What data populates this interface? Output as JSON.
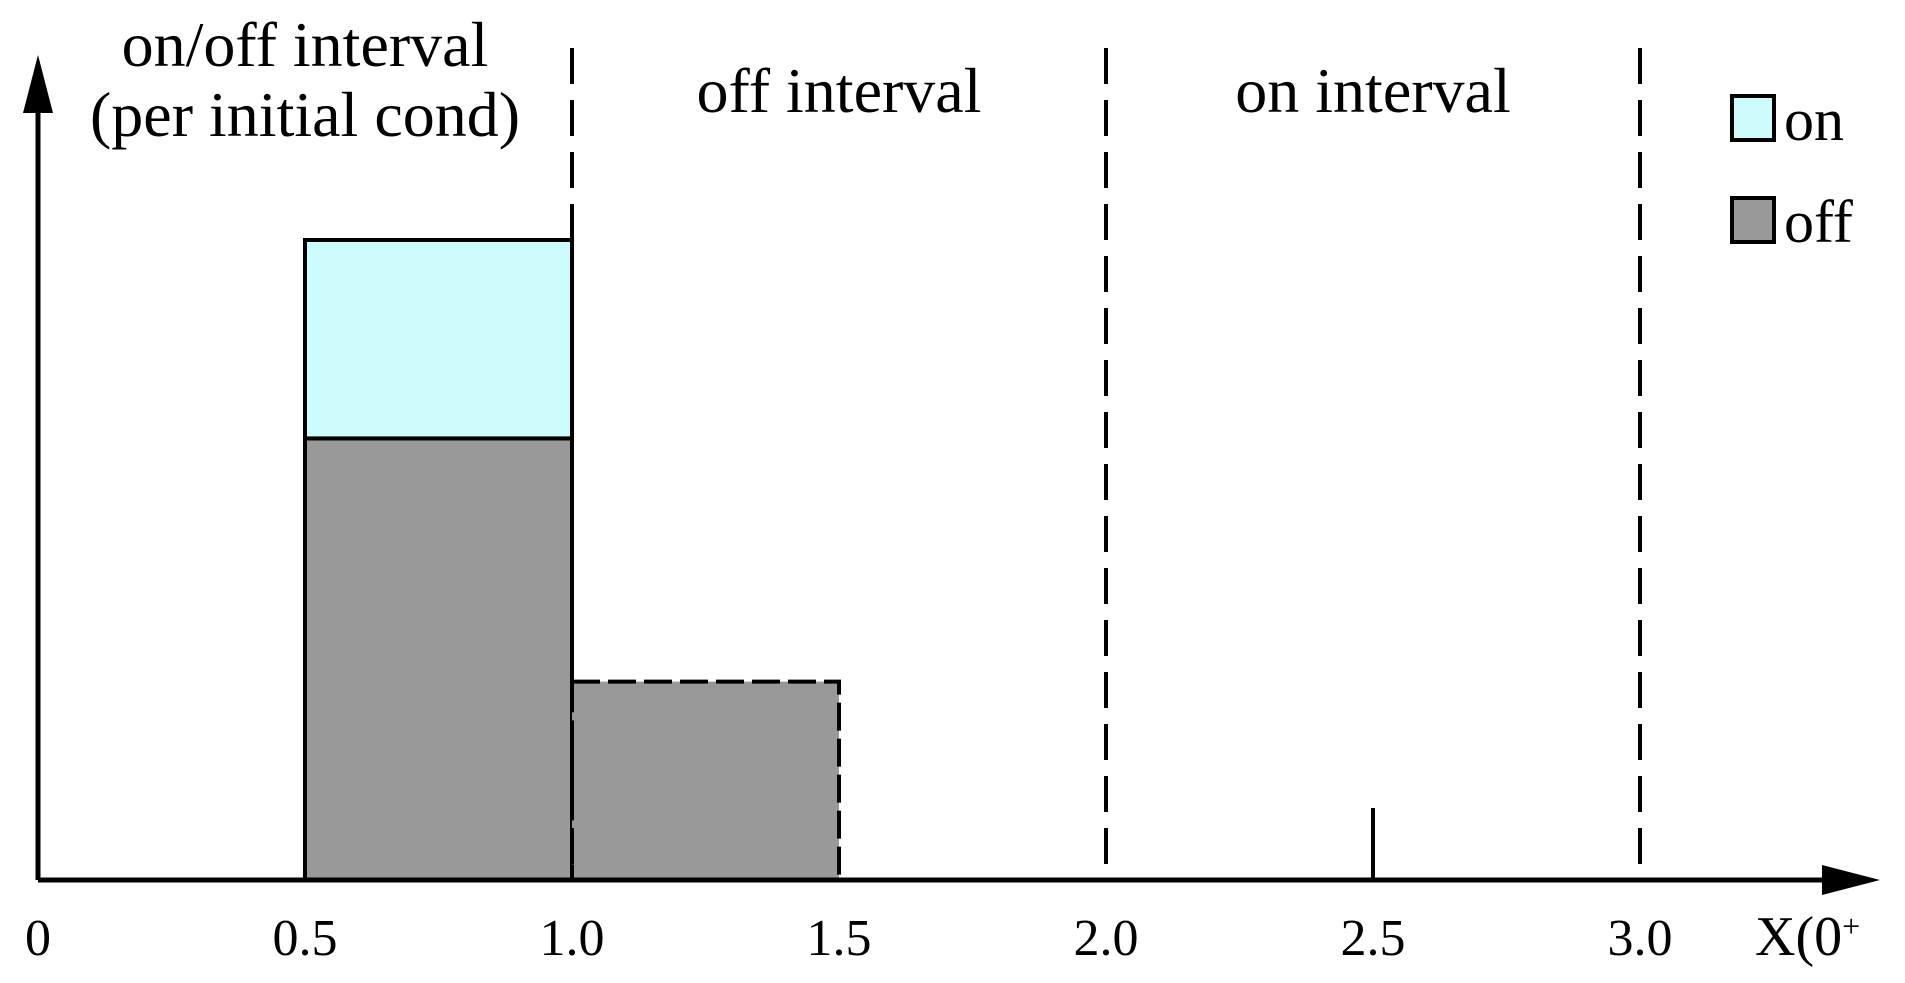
{
  "chart_data": {
    "type": "bar",
    "xlabel": "X(0",
    "xlabel_sup": "+",
    "xlim": [
      0,
      3.5
    ],
    "x_ticks": [
      0,
      0.5,
      1.0,
      1.5,
      2.0,
      2.5,
      3.0
    ],
    "x_tick_labels": [
      "0",
      "0.5",
      "1.0",
      "1.5",
      "2.0",
      "2.5",
      "3.0"
    ],
    "ylim": [
      0,
      1.1
    ],
    "bars": [
      {
        "x0": 0.5,
        "x1": 1.0,
        "off": 0.69,
        "on": 0.31
      },
      {
        "x0": 1.0,
        "x1": 1.5,
        "off": 0.31,
        "on": 0
      }
    ],
    "dividers": [
      1.0,
      2.0,
      3.0
    ],
    "short_tick": 2.5,
    "regions": [
      {
        "lines": [
          "on/off interval",
          "(per initial cond)"
        ],
        "x_from": 0,
        "x_to": 1.0
      },
      {
        "lines": [
          "off interval"
        ],
        "x_from": 1.0,
        "x_to": 2.0
      },
      {
        "lines": [
          "on interval"
        ],
        "x_from": 2.0,
        "x_to": 3.0
      }
    ],
    "legend": [
      {
        "name": "on",
        "color": "#cdfcfc"
      },
      {
        "name": "off",
        "color": "#999999"
      }
    ],
    "legend_position": "top-right",
    "grid": false
  }
}
